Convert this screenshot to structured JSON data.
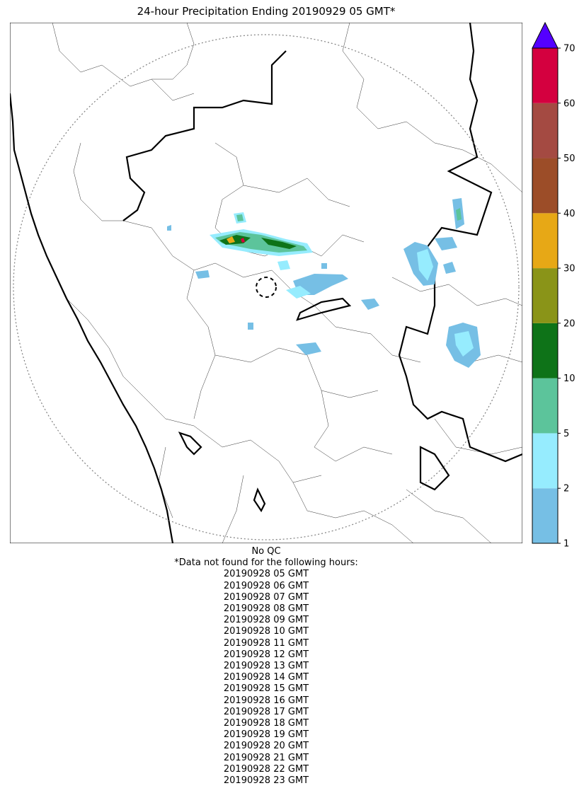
{
  "title": "24-hour Precipitation Ending 20190929 05 GMT*",
  "footer": {
    "qc_label": "No QC",
    "missing_note": "*Data not found for the following hours:",
    "missing_hours": [
      "20190928 05 GMT",
      "20190928 06 GMT",
      "20190928 07 GMT",
      "20190928 08 GMT",
      "20190928 09 GMT",
      "20190928 10 GMT",
      "20190928 11 GMT",
      "20190928 12 GMT",
      "20190928 13 GMT",
      "20190928 14 GMT",
      "20190928 15 GMT",
      "20190928 16 GMT",
      "20190928 17 GMT",
      "20190928 18 GMT",
      "20190928 19 GMT",
      "20190928 20 GMT",
      "20190928 21 GMT",
      "20190928 22 GMT",
      "20190928 23 GMT"
    ]
  },
  "colorbar": {
    "ticks": [
      "1",
      "2",
      "5",
      "10",
      "20",
      "30",
      "40",
      "50",
      "60",
      "70"
    ],
    "colors": [
      "#76bfe5",
      "#96ecfe",
      "#5cc49b",
      "#0e7318",
      "#8a9418",
      "#e7a816",
      "#9c4d28",
      "#a44a42",
      "#d4003f"
    ],
    "extend_color": "#5400ff"
  },
  "map": {
    "precip_colors": {
      "light": "#76bfe5",
      "moderate": "#96ecfe",
      "heavy": "#5cc49b",
      "very_heavy": "#0e7318",
      "extreme": "#d4003f",
      "orange": "#e7a816"
    },
    "radar_range_ring": true,
    "radar_site_marker": true
  }
}
